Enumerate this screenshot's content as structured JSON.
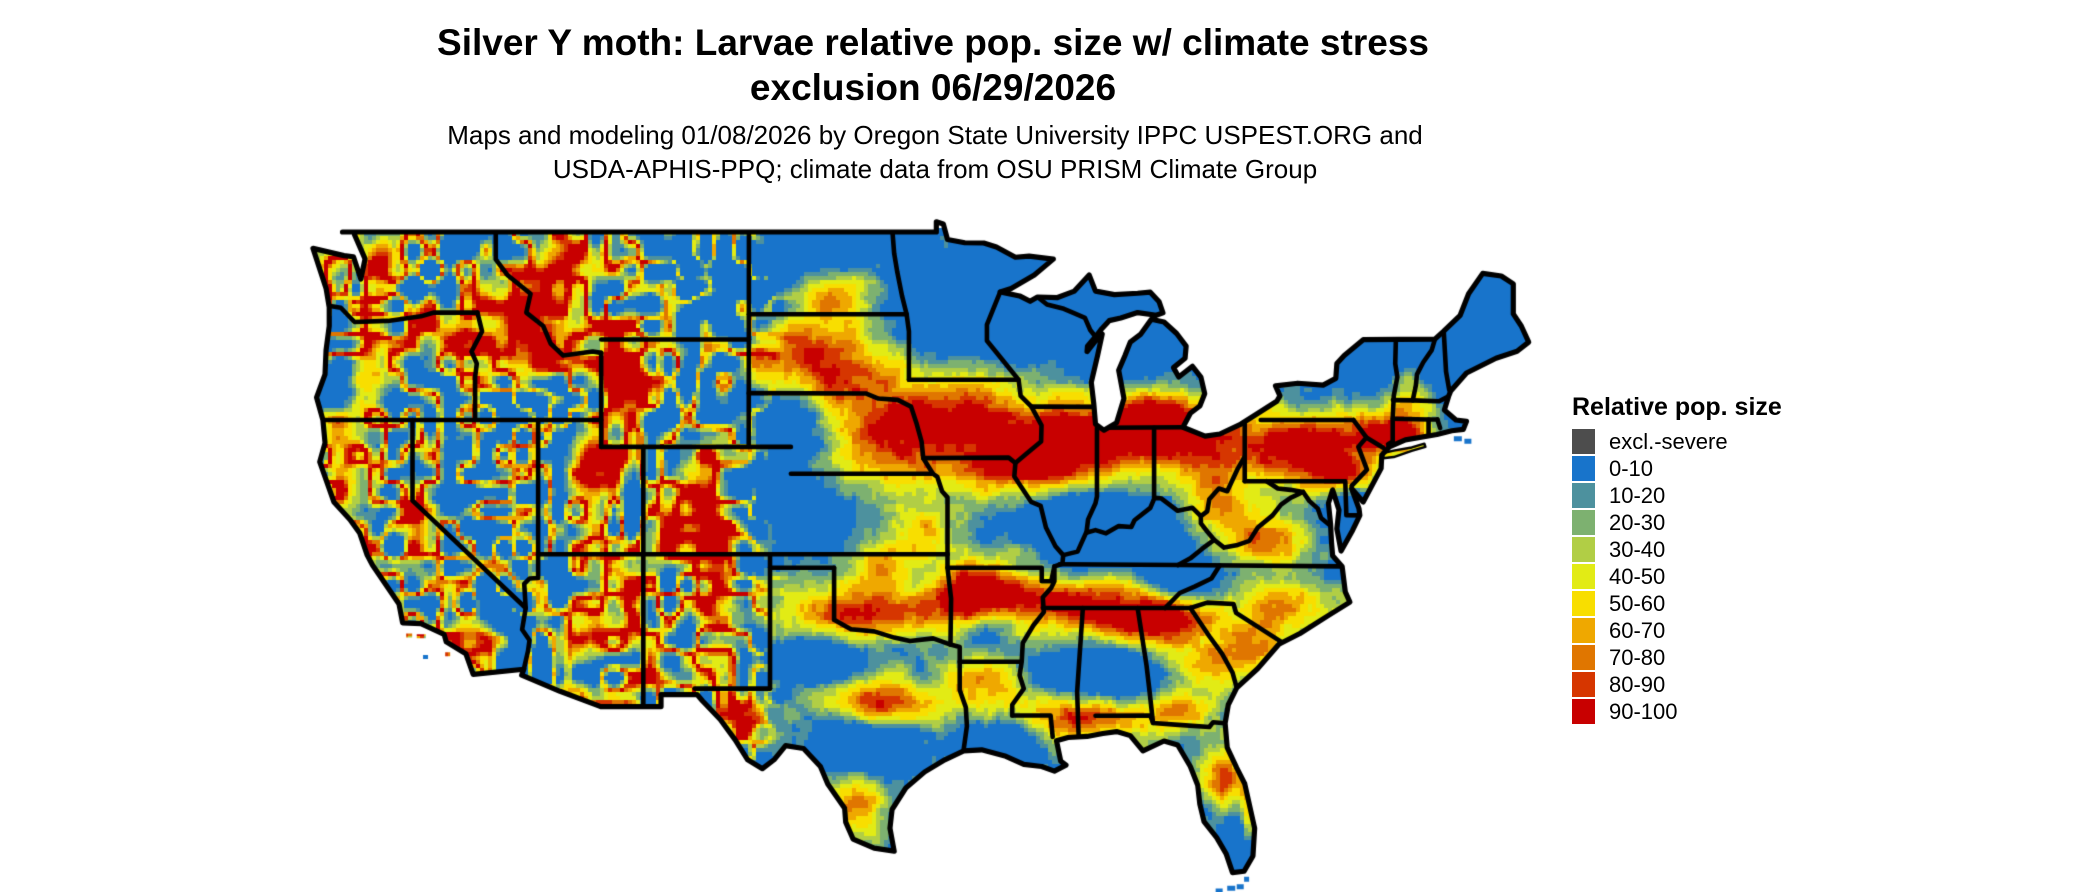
{
  "title": {
    "line1": "Silver Y moth: Larvae relative pop. size w/ climate stress",
    "line2": "exclusion 06/29/2026"
  },
  "subtitle": {
    "line1": "Maps and modeling 01/08/2026 by Oregon State University IPPC USPEST.ORG and",
    "line2": "USDA-APHIS-PPQ; climate data from OSU PRISM Climate Group"
  },
  "legend": {
    "title": "Relative pop. size",
    "entries": [
      {
        "label": "excl.-severe",
        "color": "#4D4D4D"
      },
      {
        "label": "0-10",
        "color": "#1874CB"
      },
      {
        "label": "10-20",
        "color": "#4D919E"
      },
      {
        "label": "20-30",
        "color": "#7DB170"
      },
      {
        "label": "30-40",
        "color": "#B1CE45"
      },
      {
        "label": "40-50",
        "color": "#E2EB15"
      },
      {
        "label": "50-60",
        "color": "#F8DE00"
      },
      {
        "label": "60-70",
        "color": "#EFA800"
      },
      {
        "label": "70-80",
        "color": "#E07600"
      },
      {
        "label": "80-90",
        "color": "#D63600"
      },
      {
        "label": "90-100",
        "color": "#C80000"
      }
    ]
  },
  "map": {
    "region_label": "Contiguous United States",
    "state_border_color": "#000000",
    "water_color": "#FFFFFF"
  }
}
